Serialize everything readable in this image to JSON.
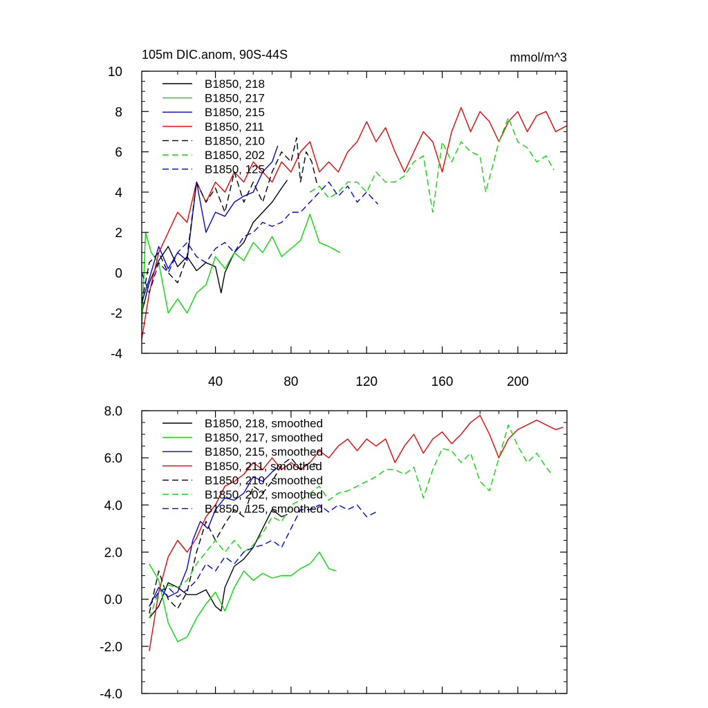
{
  "chart_data": [
    {
      "type": "line",
      "title": "105m DIC.anom, 90S-44S",
      "units": "mmol/m^3",
      "xlim": [
        1,
        226
      ],
      "ylim": [
        -4,
        10
      ],
      "x_ticks": [
        40,
        80,
        120,
        160,
        200
      ],
      "y_ticks": [
        "-4",
        "-2",
        "0",
        "2",
        "4",
        "6",
        "8",
        "10"
      ],
      "y_tick_values": [
        -4,
        -2,
        0,
        2,
        4,
        6,
        8,
        10
      ],
      "x_tick_labels_shown": true,
      "legend": "top-left",
      "series": [
        {
          "name": "B1850, 218",
          "color": "#000000",
          "dash": "solid",
          "x": [
            1,
            5,
            10,
            15,
            20,
            25,
            30,
            35,
            40,
            43,
            45,
            50,
            55,
            60,
            65,
            70,
            75,
            78
          ],
          "values": [
            -2.0,
            -0.5,
            0.6,
            1.3,
            0.3,
            0.8,
            0.1,
            0.5,
            0.3,
            -1.0,
            0.0,
            1.0,
            1.5,
            2.5,
            3.0,
            3.5,
            4.2,
            4.6
          ]
        },
        {
          "name": "B1850, 217",
          "color": "#00e000",
          "dash": "solid",
          "x": [
            1,
            3,
            6,
            10,
            15,
            20,
            25,
            30,
            35,
            40,
            45,
            50,
            55,
            60,
            65,
            70,
            75,
            80,
            85,
            90,
            95,
            100,
            106
          ],
          "values": [
            -2.8,
            2.0,
            1.0,
            0.5,
            -2.0,
            -1.3,
            -2.0,
            -1.0,
            -0.6,
            0.8,
            0.2,
            1.0,
            0.6,
            1.5,
            1.0,
            1.8,
            0.8,
            1.2,
            1.6,
            2.9,
            1.5,
            1.3,
            1.0
          ]
        },
        {
          "name": "B1850, 215",
          "color": "#0000ee",
          "dash": "solid",
          "x": [
            1,
            5,
            10,
            15,
            20,
            25,
            30,
            35,
            40,
            45,
            50,
            55,
            60,
            65,
            70,
            73
          ],
          "values": [
            -1.5,
            -0.3,
            1.3,
            0.2,
            1.0,
            0.6,
            4.5,
            2.0,
            3.0,
            2.8,
            3.5,
            3.8,
            4.0,
            5.0,
            5.5,
            6.3
          ]
        },
        {
          "name": "B1850, 211",
          "color": "#ee0000",
          "dash": "solid",
          "x": [
            1,
            5,
            10,
            15,
            20,
            25,
            30,
            35,
            40,
            45,
            50,
            55,
            60,
            65,
            70,
            75,
            80,
            85,
            90,
            95,
            100,
            105,
            110,
            115,
            120,
            125,
            130,
            135,
            140,
            145,
            150,
            155,
            160,
            165,
            170,
            175,
            180,
            185,
            190,
            195,
            200,
            205,
            210,
            215,
            220,
            226
          ],
          "values": [
            -3.3,
            -1.0,
            1.0,
            2.0,
            3.0,
            2.5,
            4.5,
            3.5,
            4.5,
            4.0,
            5.0,
            4.5,
            5.5,
            5.0,
            4.5,
            5.5,
            5.0,
            6.0,
            6.5,
            5.0,
            5.5,
            5.0,
            6.0,
            6.5,
            7.5,
            6.5,
            7.2,
            6.0,
            5.0,
            6.0,
            7.0,
            6.5,
            5.0,
            7.0,
            8.2,
            7.0,
            8.0,
            7.5,
            6.5,
            7.5,
            8.0,
            7.0,
            7.8,
            8.0,
            7.0,
            7.3
          ]
        },
        {
          "name": "B1850, 210",
          "color": "#000000",
          "dash": "dashed",
          "x": [
            1,
            5,
            10,
            15,
            20,
            25,
            30,
            35,
            40,
            45,
            50,
            55,
            60,
            65,
            70,
            75,
            80,
            83,
            85,
            88,
            91,
            94
          ],
          "values": [
            -1.5,
            0.5,
            1.0,
            0.0,
            -0.5,
            0.8,
            4.5,
            3.5,
            4.2,
            3.0,
            5.0,
            3.5,
            4.5,
            3.5,
            5.0,
            6.0,
            5.5,
            6.7,
            4.5,
            6.0,
            5.5,
            4.3
          ]
        },
        {
          "name": "B1850, 202",
          "color": "#00e000",
          "dash": "dashed",
          "x": [
            90,
            95,
            100,
            105,
            110,
            115,
            120,
            125,
            130,
            135,
            140,
            145,
            150,
            155,
            160,
            165,
            170,
            175,
            180,
            183,
            190,
            195,
            200,
            205,
            210,
            215,
            219
          ],
          "values": [
            4.0,
            4.3,
            3.7,
            4.0,
            4.5,
            4.5,
            4.0,
            5.0,
            4.5,
            4.5,
            4.8,
            5.5,
            5.8,
            3.0,
            6.5,
            5.5,
            6.5,
            6.0,
            5.8,
            4.0,
            6.5,
            7.7,
            6.5,
            6.2,
            5.5,
            5.8,
            5.1
          ]
        },
        {
          "name": "B1850, 125",
          "color": "#0000ee",
          "dash": "dashed",
          "x": [
            1,
            5,
            10,
            15,
            20,
            25,
            30,
            35,
            40,
            45,
            50,
            55,
            60,
            65,
            70,
            75,
            80,
            85,
            90,
            95,
            100,
            105,
            110,
            115,
            120,
            126
          ],
          "values": [
            0.0,
            -1.0,
            0.5,
            0.0,
            1.0,
            1.5,
            0.8,
            0.5,
            1.2,
            1.5,
            1.0,
            1.8,
            2.0,
            2.5,
            2.3,
            2.5,
            3.0,
            3.0,
            3.5,
            4.0,
            4.5,
            3.8,
            4.3,
            3.5,
            4.0,
            3.4
          ]
        }
      ]
    },
    {
      "type": "line",
      "title": "",
      "xlim": [
        1,
        226
      ],
      "ylim": [
        -4,
        8
      ],
      "x_ticks": [
        40,
        80,
        120,
        160,
        200
      ],
      "x_tick_labels_shown": false,
      "y_ticks": [
        "-4.0",
        "-2.0",
        "0.0",
        "2.0",
        "4.0",
        "6.0",
        "8.0"
      ],
      "y_tick_values": [
        -4,
        -2,
        0,
        2,
        4,
        6,
        8
      ],
      "legend": "top-left",
      "series": [
        {
          "name": "B1850, 218, smoothed",
          "color": "#000000",
          "dash": "solid",
          "x": [
            5,
            10,
            15,
            20,
            25,
            30,
            35,
            40,
            43,
            45,
            50,
            55,
            60,
            65,
            70,
            75,
            78
          ],
          "values": [
            -0.8,
            -0.3,
            0.7,
            0.5,
            0.2,
            0.2,
            0.4,
            -0.3,
            -0.5,
            0.5,
            1.4,
            1.7,
            2.2,
            3.0,
            3.8,
            3.5,
            3.6
          ]
        },
        {
          "name": "B1850, 217, smoothed",
          "color": "#00e000",
          "dash": "solid",
          "x": [
            5,
            10,
            15,
            20,
            25,
            30,
            35,
            40,
            45,
            50,
            55,
            60,
            65,
            70,
            75,
            80,
            85,
            90,
            95,
            100,
            104
          ],
          "values": [
            1.5,
            0.8,
            -1.0,
            -1.8,
            -1.6,
            -0.8,
            -0.2,
            0.3,
            -0.5,
            0.5,
            1.2,
            0.8,
            1.1,
            0.9,
            1.0,
            1.0,
            1.3,
            1.5,
            2.0,
            1.3,
            1.2
          ]
        },
        {
          "name": "B1850, 215, smoothed",
          "color": "#0000ee",
          "dash": "solid",
          "x": [
            5,
            10,
            15,
            20,
            25,
            28,
            32,
            36,
            40,
            45,
            50,
            55,
            60,
            65,
            70,
            73
          ],
          "values": [
            -0.3,
            0.5,
            0.1,
            0.3,
            1.3,
            2.5,
            3.3,
            3.0,
            3.8,
            4.3,
            4.2,
            4.5,
            5.2,
            5.0,
            5.4,
            5.6
          ]
        },
        {
          "name": "B1850, 211, smoothed",
          "color": "#ee0000",
          "dash": "solid",
          "x": [
            5,
            10,
            15,
            20,
            25,
            30,
            35,
            40,
            45,
            50,
            55,
            60,
            65,
            70,
            75,
            80,
            85,
            90,
            95,
            100,
            105,
            110,
            115,
            120,
            125,
            130,
            135,
            140,
            145,
            150,
            155,
            160,
            165,
            170,
            175,
            180,
            185,
            190,
            195,
            200,
            205,
            210,
            215,
            220,
            224
          ],
          "values": [
            -2.2,
            0.3,
            1.8,
            2.5,
            2.0,
            2.6,
            3.5,
            4.0,
            4.8,
            5.0,
            5.3,
            5.8,
            5.5,
            6.0,
            5.5,
            5.8,
            5.5,
            5.8,
            6.3,
            6.0,
            6.5,
            6.8,
            6.3,
            6.8,
            6.5,
            6.8,
            5.8,
            6.5,
            7.0,
            6.2,
            6.8,
            7.1,
            6.6,
            7.0,
            7.5,
            7.8,
            7.0,
            6.0,
            6.8,
            7.2,
            7.4,
            7.6,
            7.4,
            7.2,
            7.3
          ]
        },
        {
          "name": "B1850, 210, smoothed",
          "color": "#000000",
          "dash": "dashed",
          "x": [
            5,
            10,
            15,
            20,
            25,
            30,
            35,
            40,
            45,
            50,
            55,
            60,
            65,
            70,
            75,
            80,
            85,
            90,
            94
          ],
          "values": [
            -0.6,
            1.2,
            0.0,
            -0.4,
            0.3,
            2.0,
            3.3,
            2.5,
            3.2,
            3.8,
            3.5,
            4.8,
            4.5,
            5.0,
            5.7,
            6.0,
            5.5,
            5.8,
            5.7
          ]
        },
        {
          "name": "B1850, 202, smoothed",
          "color": "#00e000",
          "dash": "dashed",
          "x": [
            5,
            10,
            15,
            20,
            25,
            30,
            35,
            40,
            45,
            50,
            55,
            60,
            65,
            70,
            75,
            80,
            85,
            90,
            95,
            100,
            105,
            110,
            115,
            120,
            125,
            130,
            135,
            140,
            145,
            150,
            155,
            160,
            165,
            170,
            175,
            180,
            185,
            190,
            195,
            200,
            205,
            210,
            215,
            218
          ],
          "values": [
            -0.8,
            0.3,
            0.6,
            0.5,
            0.8,
            1.5,
            2.0,
            2.5,
            2.0,
            2.5,
            2.0,
            2.3,
            2.8,
            3.5,
            3.3,
            4.0,
            4.2,
            4.5,
            4.8,
            4.2,
            4.5,
            4.6,
            4.8,
            5.0,
            5.2,
            5.5,
            5.5,
            5.3,
            5.6,
            4.3,
            5.5,
            6.4,
            6.3,
            5.8,
            6.2,
            5.0,
            4.6,
            6.0,
            7.4,
            6.5,
            5.8,
            6.2,
            5.6,
            5.3
          ]
        },
        {
          "name": "B1850, 125, smoothed",
          "color": "#0000ee",
          "dash": "dashed",
          "x": [
            5,
            10,
            15,
            20,
            25,
            30,
            35,
            40,
            45,
            50,
            55,
            60,
            65,
            70,
            75,
            80,
            85,
            90,
            95,
            100,
            105,
            110,
            115,
            120,
            125
          ],
          "values": [
            -0.3,
            0.3,
            0.5,
            0.1,
            0.4,
            0.8,
            1.5,
            1.2,
            1.8,
            1.5,
            2.0,
            2.2,
            2.3,
            2.5,
            2.2,
            3.0,
            3.8,
            3.8,
            4.0,
            3.7,
            4.0,
            3.8,
            4.0,
            3.5,
            3.7
          ]
        }
      ]
    }
  ]
}
